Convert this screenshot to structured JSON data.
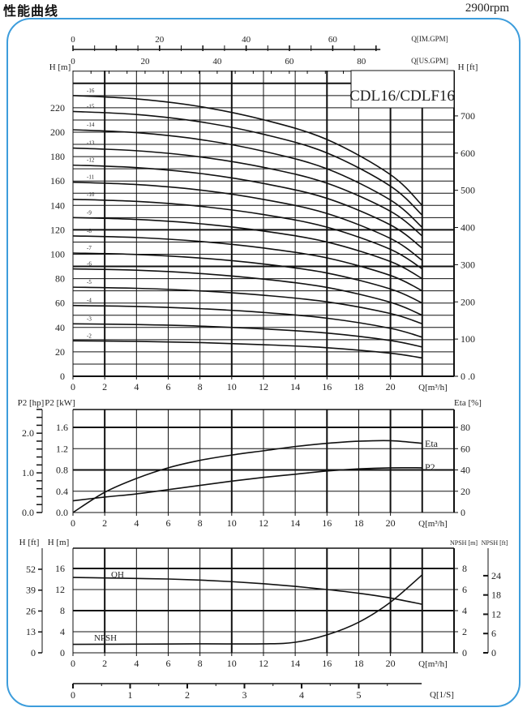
{
  "header": {
    "title": "性能曲线",
    "speed": "2900rpm"
  },
  "colors": {
    "frame": "#3d9ddc",
    "lines": "#111111"
  },
  "chart_data": [
    {
      "type": "line",
      "title": "CDL16/CDLF16",
      "xlabel": "Q[m³/h]",
      "ylabel": "H [m]",
      "y2label": "H [ft]",
      "xlim": [
        0,
        24
      ],
      "ylim": [
        0,
        250
      ],
      "grid": true,
      "top_axes": [
        {
          "label": "Q[IM.GPM]",
          "ticks": [
            "0",
            "20",
            "40",
            "60"
          ],
          "values": [
            0,
            20,
            40,
            60
          ]
        },
        {
          "label": "Q[US.GPM]",
          "ticks": [
            "0",
            "20",
            "40",
            "60",
            "80"
          ],
          "values": [
            0,
            20,
            40,
            60,
            80
          ]
        }
      ],
      "x_ticks": [
        "0",
        "2",
        "4",
        "6",
        "8",
        "10",
        "12",
        "14",
        "16",
        "18",
        "20"
      ],
      "y_ticks": [
        "0",
        "20",
        "40",
        "60",
        "80",
        "100",
        "120",
        "140",
        "160",
        "180",
        "200",
        "220"
      ],
      "y2_ticks": [
        "0 .0",
        "100",
        "200",
        "300",
        "400",
        "500",
        "600",
        "700"
      ],
      "x": [
        0,
        4,
        8,
        12,
        16,
        20,
        22
      ],
      "series": [
        {
          "name": "-2",
          "values": [
            29,
            28.6,
            27.6,
            25.9,
            23.4,
            18.9,
            15
          ]
        },
        {
          "name": "-3",
          "values": [
            43,
            42.4,
            41.1,
            38.8,
            35.4,
            29.3,
            24
          ]
        },
        {
          "name": "-4",
          "values": [
            58,
            57.2,
            55.4,
            52.3,
            47.6,
            39.3,
            32
          ]
        },
        {
          "name": "-5",
          "values": [
            73,
            72.1,
            70,
            66.4,
            61,
            51.4,
            43
          ]
        },
        {
          "name": "-6",
          "values": [
            88,
            86.9,
            84.2,
            79.6,
            72.8,
            60.6,
            50
          ]
        },
        {
          "name": "-7",
          "values": [
            101,
            99.8,
            96.9,
            92,
            84.6,
            71.5,
            60
          ]
        },
        {
          "name": "-8",
          "values": [
            115,
            113.7,
            110.5,
            105.1,
            97,
            82.6,
            70
          ]
        },
        {
          "name": "-9",
          "values": [
            130,
            128.5,
            125,
            119,
            110,
            94,
            80
          ]
        },
        {
          "name": "-10",
          "values": [
            145,
            143.3,
            139.3,
            132.5,
            122.2,
            104,
            88
          ]
        },
        {
          "name": "-11",
          "values": [
            159,
            157.1,
            152.6,
            144.9,
            133.4,
            112.9,
            95
          ]
        },
        {
          "name": "-12",
          "values": [
            173,
            171,
            166.2,
            158,
            145.8,
            124,
            105
          ]
        },
        {
          "name": "-13",
          "values": [
            187,
            184.8,
            179.8,
            171.2,
            158.2,
            135.2,
            115
          ]
        },
        {
          "name": "-14",
          "values": [
            202,
            199.6,
            194,
            184.4,
            170,
            144.4,
            122
          ]
        },
        {
          "name": "-15",
          "values": [
            217,
            214.5,
            208.5,
            198.3,
            183,
            155.8,
            132
          ]
        },
        {
          "name": "-16",
          "values": [
            230,
            227.3,
            221,
            210.2,
            194,
            165.2,
            140
          ]
        }
      ]
    },
    {
      "type": "line",
      "xlabel": "Q[m³/h]",
      "ylabel": "P2 [kW]",
      "y_hp_label": "P2 [hp]",
      "y2label": "Eta [%]",
      "xlim": [
        0,
        24
      ],
      "ylim": [
        0,
        1.94
      ],
      "grid": true,
      "x_ticks": [
        "0",
        "2",
        "4",
        "6",
        "8",
        "10",
        "12",
        "14",
        "16",
        "18",
        "20"
      ],
      "y_ticks": [
        "0.0",
        "0.4",
        "0.8",
        "1.2",
        "1.6"
      ],
      "y_hp_ticks": [
        "0.0",
        "1.0",
        "2.0"
      ],
      "y2_ticks": [
        "0",
        "20",
        "40",
        "60",
        "80"
      ],
      "x": [
        0,
        2,
        4,
        6,
        8,
        10,
        12,
        14,
        16,
        18,
        20,
        22
      ],
      "series": [
        {
          "name": "Eta",
          "unit": "%",
          "values": [
            0,
            19,
            32,
            42,
            49,
            54,
            58,
            62,
            65,
            67,
            67.5,
            65
          ]
        },
        {
          "name": "P2",
          "unit": "kW",
          "values": [
            0.22,
            0.29,
            0.35,
            0.43,
            0.51,
            0.59,
            0.66,
            0.72,
            0.78,
            0.82,
            0.84,
            0.84
          ]
        }
      ]
    },
    {
      "type": "line",
      "xlabel": "Q[m³/h]",
      "x2label": "Q[1/S]",
      "ylabel": "H [m]",
      "y_ft_label": "H [ft]",
      "y2label": "NPSH [m]",
      "y3label": "NPSH [ft]",
      "xlim": [
        0,
        24
      ],
      "ylim": [
        0,
        19.8
      ],
      "grid": true,
      "x_ticks": [
        "0",
        "2",
        "4",
        "6",
        "8",
        "10",
        "12",
        "14",
        "16",
        "18",
        "20"
      ],
      "x2_ticks": [
        "0",
        "1",
        "2",
        "3",
        "4",
        "5"
      ],
      "y_ticks": [
        "0",
        "4",
        "8",
        "12",
        "16"
      ],
      "y_ft_ticks": [
        "0",
        "13",
        "26",
        "39",
        "52"
      ],
      "y2_ticks": [
        "0",
        "2",
        "4",
        "6",
        "8"
      ],
      "y3_ticks": [
        "0",
        "6",
        "12",
        "18",
        "24"
      ],
      "series": [
        {
          "name": "QH",
          "unit": "m",
          "x": [
            0,
            2,
            4,
            6,
            8,
            10,
            12,
            14,
            16,
            18,
            20,
            22
          ],
          "values": [
            14.3,
            14.2,
            14.1,
            14.0,
            13.8,
            13.5,
            13.1,
            12.6,
            12.0,
            11.3,
            10.4,
            9.2
          ]
        },
        {
          "name": "NPSH",
          "unit": "m",
          "x": [
            0,
            4,
            8,
            12,
            14,
            16,
            18,
            20,
            22
          ],
          "values": [
            0.8,
            0.82,
            0.85,
            0.85,
            1.0,
            1.7,
            2.9,
            4.8,
            7.4
          ]
        }
      ]
    }
  ]
}
